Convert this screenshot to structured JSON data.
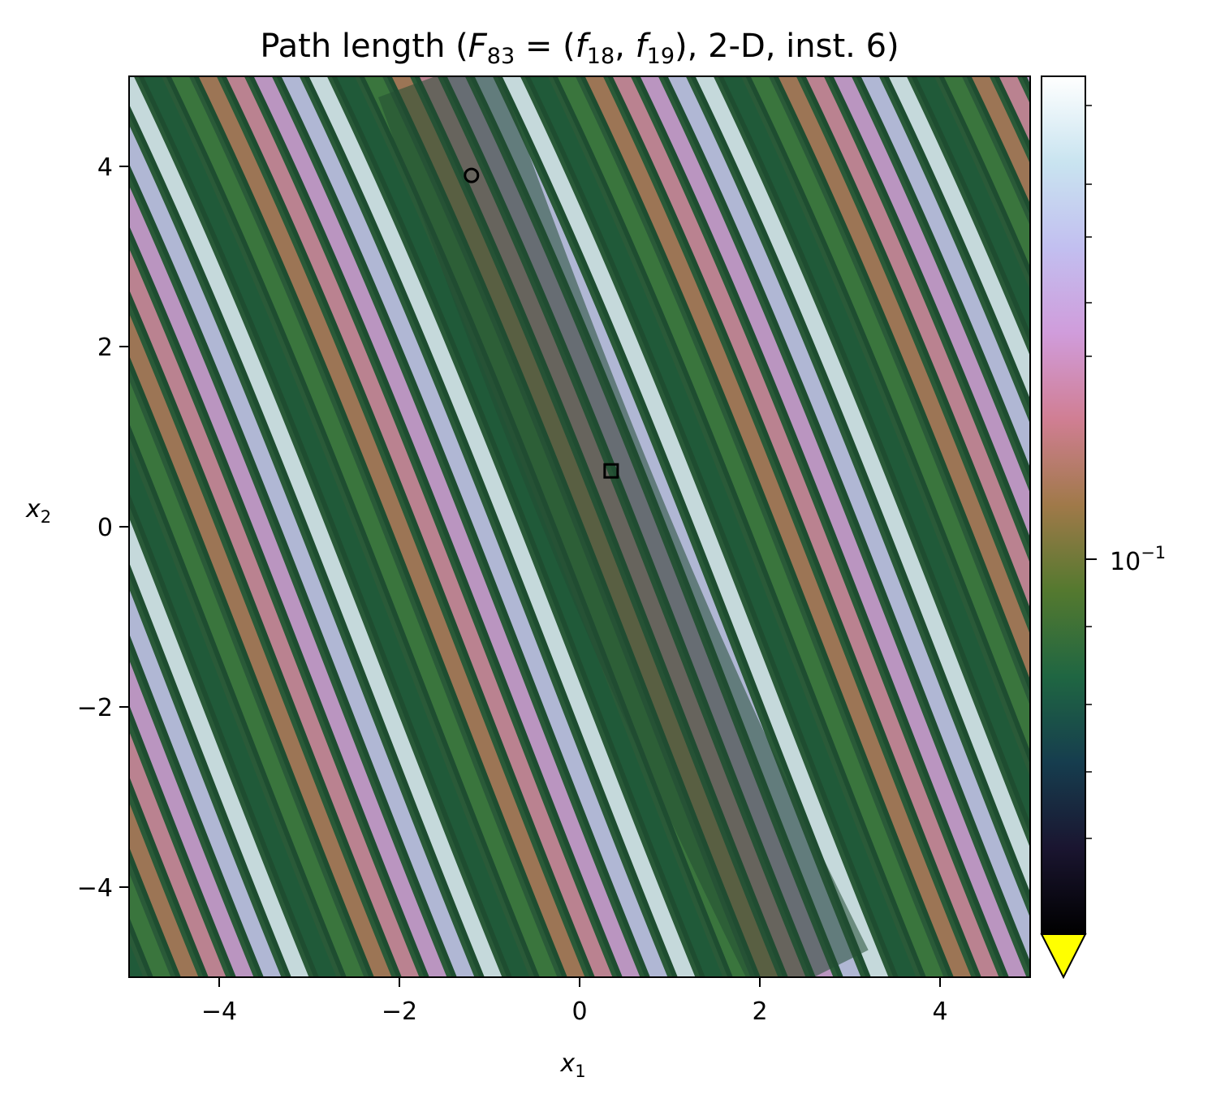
{
  "chart_data": {
    "type": "heatmap",
    "title": {
      "prefix": "Path length (",
      "F": "F",
      "F_sub": "83",
      "eq": " = (",
      "f1": "f",
      "f1_sub": "18",
      "comma": ", ",
      "f2": "f",
      "f2_sub": "19",
      "suffix": "), 2-D, inst. 6)"
    },
    "xlabel": {
      "base": "x",
      "sub": "1"
    },
    "ylabel": {
      "base": "x",
      "sub": "2"
    },
    "xlim": [
      -5,
      5
    ],
    "ylim": [
      -5,
      5
    ],
    "x_ticks": [
      -4,
      -2,
      0,
      2,
      4
    ],
    "y_ticks": [
      -4,
      -2,
      0,
      2,
      4
    ],
    "x_tick_labels": [
      "−4",
      "−2",
      "0",
      "2",
      "4"
    ],
    "y_tick_labels": [
      "−4",
      "−2",
      "0",
      "2",
      "4"
    ],
    "colorbar": {
      "colormap": "cubehelix",
      "scale": "log",
      "tick_label": {
        "base": "10",
        "exp": "−1"
      },
      "extend": "min",
      "under_color": "#ffff00",
      "stops": [
        "#000000",
        "#1a1530",
        "#163d4e",
        "#1f6642",
        "#54792f",
        "#a07949",
        "#d07e93",
        "#d09cdb",
        "#c2bff0",
        "#c9e4f0",
        "#ffffff"
      ]
    },
    "stripe_colors": [
      "#1f5a3a",
      "#3d7a3e",
      "#b07a5a",
      "#d48aa0",
      "#d4a0d8",
      "#c8c8f0",
      "#e0f0f8"
    ],
    "markers": [
      {
        "shape": "circle",
        "x": -1.2,
        "y": 3.9
      },
      {
        "shape": "square",
        "x": 0.35,
        "y": 0.62
      }
    ]
  }
}
